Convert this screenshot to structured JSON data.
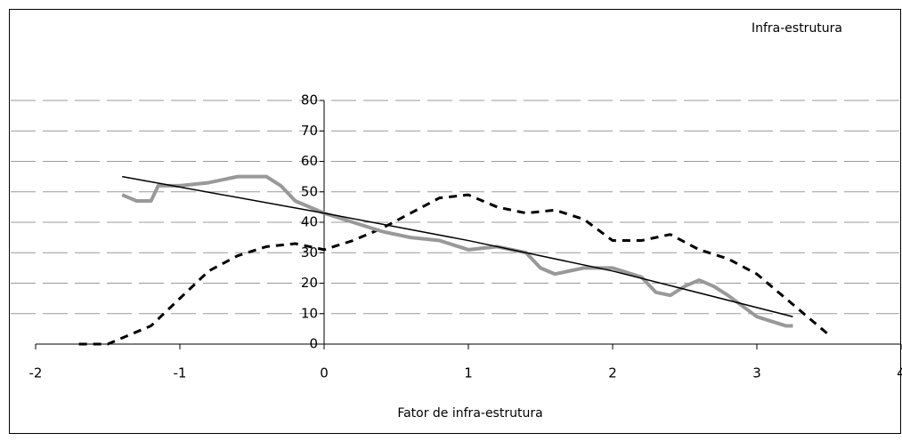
{
  "chart_data": {
    "type": "line",
    "title": "Infra-estrutura",
    "x_label": "Fator de infra-estrutura",
    "xlim": [
      -2,
      4
    ],
    "xticks": [
      -2,
      -1,
      0,
      1,
      2,
      3,
      4
    ],
    "ylim": [
      0,
      80
    ],
    "yticks": [
      0,
      10,
      20,
      30,
      40,
      50,
      60,
      70,
      80
    ],
    "grid": true,
    "series": [
      {
        "color": "#000000",
        "line_style": "dashed",
        "width": 3,
        "x": [
          -1.7,
          -1.5,
          -1.4,
          -1.2,
          -1.0,
          -0.8,
          -0.6,
          -0.4,
          -0.2,
          0,
          0.2,
          0.4,
          0.6,
          0.8,
          1.0,
          1.2,
          1.4,
          1.6,
          1.8,
          2.0,
          2.2,
          2.4,
          2.6,
          2.8,
          3.0,
          3.2,
          3.4,
          3.5
        ],
        "values": [
          0,
          0,
          2,
          6,
          15,
          24,
          29,
          32,
          33,
          31,
          34,
          38,
          43,
          48,
          49,
          45,
          43,
          44,
          41,
          34,
          34,
          36,
          31,
          28,
          23,
          15,
          7,
          3
        ]
      },
      {
        "color": "#999999",
        "line_style": "solid",
        "width": 4,
        "x": [
          -1.4,
          -1.3,
          -1.2,
          -1.15,
          -1.0,
          -0.8,
          -0.6,
          -0.4,
          -0.3,
          -0.2,
          0,
          0.2,
          0.4,
          0.6,
          0.8,
          1.0,
          1.2,
          1.4,
          1.5,
          1.6,
          1.8,
          2.0,
          2.2,
          2.3,
          2.4,
          2.5,
          2.6,
          2.7,
          2.8,
          3.0,
          3.2,
          3.25
        ],
        "values": [
          49,
          47,
          47,
          52,
          52,
          53,
          55,
          55,
          52,
          47,
          43,
          40,
          37,
          35,
          34,
          31,
          32,
          30,
          25,
          23,
          25,
          25,
          22,
          17,
          16,
          19,
          21,
          19,
          16,
          9,
          6,
          6
        ]
      },
      {
        "color": "#000000",
        "line_style": "solid",
        "width": 1.5,
        "x": [
          -1.4,
          0,
          1,
          2,
          3.25
        ],
        "values": [
          55,
          43,
          34,
          24,
          9
        ]
      }
    ]
  }
}
